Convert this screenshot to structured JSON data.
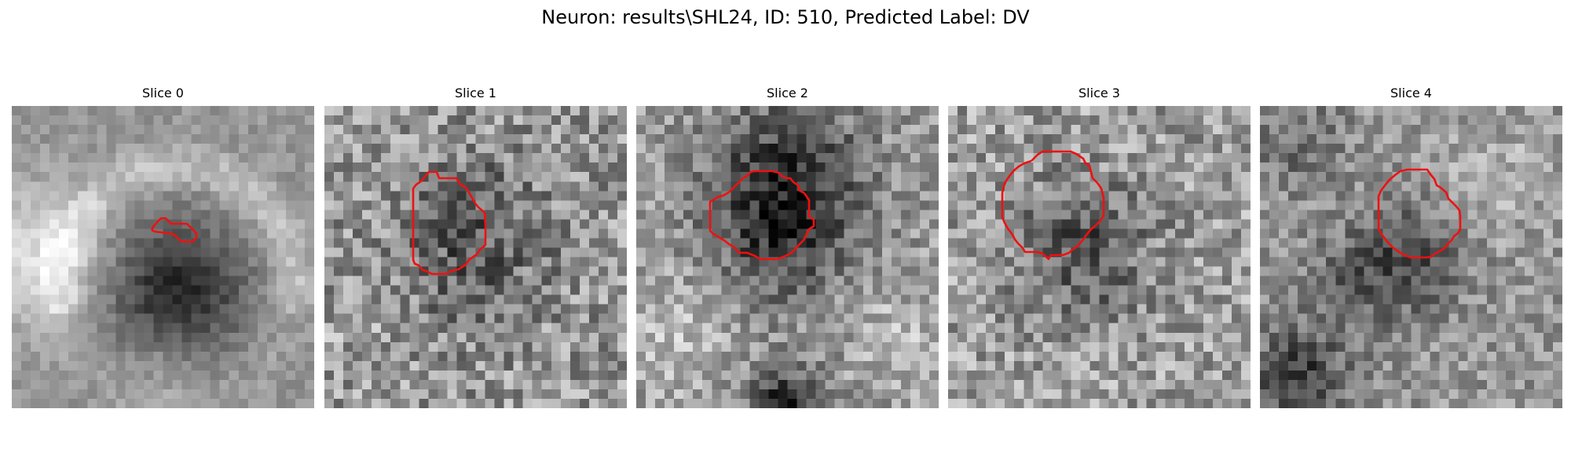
{
  "figure": {
    "title": "Neuron: results\\SHL24, ID: 510, Predicted Label: DV",
    "roi_color": "#ee1111"
  },
  "slices": [
    {
      "label": "Slice 0"
    },
    {
      "label": "Slice 1"
    },
    {
      "label": "Slice 2"
    },
    {
      "label": "Slice 3"
    },
    {
      "label": "Slice 4"
    }
  ]
}
